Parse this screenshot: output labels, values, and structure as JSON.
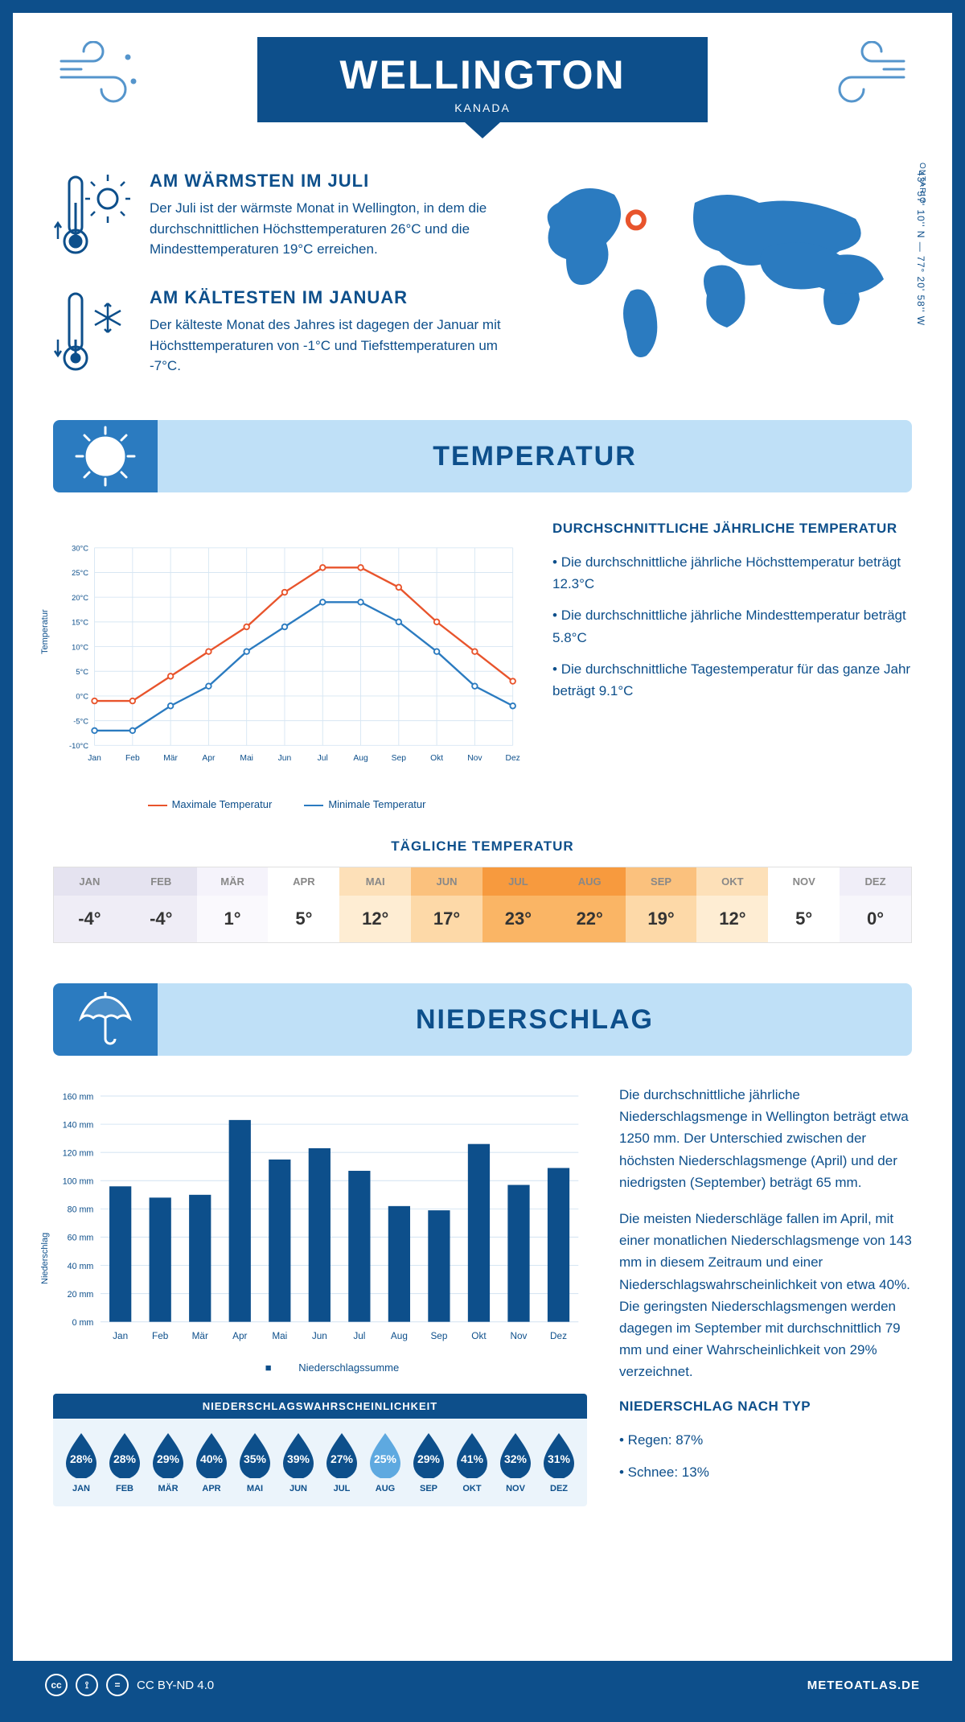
{
  "colors": {
    "primary": "#0d4f8b",
    "secondary": "#2b7bc0",
    "light_blue": "#bfe0f7",
    "pale_blue": "#ebf4fb",
    "orange_line": "#e8542c",
    "blue_line": "#2b7bc0",
    "bar_fill": "#0d4f8b",
    "grid": "#d7e6f3"
  },
  "header": {
    "city": "WELLINGTON",
    "country": "KANADA"
  },
  "location": {
    "region": "ONTARIO",
    "coords": "43° 57' 10'' N — 77° 20' 58'' W",
    "marker": {
      "lon": -77.35,
      "lat": 43.95
    }
  },
  "intro": {
    "warm": {
      "title": "AM WÄRMSTEN IM JULI",
      "text": "Der Juli ist der wärmste Monat in Wellington, in dem die durchschnittlichen Höchsttemperaturen 26°C und die Mindesttemperaturen 19°C erreichen."
    },
    "cold": {
      "title": "AM KÄLTESTEN IM JANUAR",
      "text": "Der kälteste Monat des Jahres ist dagegen der Januar mit Höchsttemperaturen von -1°C und Tiefsttemperaturen um -7°C."
    }
  },
  "temperature": {
    "section_title": "TEMPERATUR",
    "side": {
      "heading": "DURCHSCHNITTLICHE JÄHRLICHE TEMPERATUR",
      "lines": [
        "• Die durchschnittliche jährliche Höchsttemperatur beträgt 12.3°C",
        "• Die durchschnittliche jährliche Mindesttemperatur beträgt 5.8°C",
        "• Die durchschnittliche Tagestemperatur für das ganze Jahr beträgt 9.1°C"
      ]
    },
    "chart": {
      "type": "line",
      "y_axis_label": "Temperatur",
      "ylim": [
        -10,
        30
      ],
      "ytick_step": 5,
      "y_tick_suffix": "°C",
      "months": [
        "Jan",
        "Feb",
        "Mär",
        "Apr",
        "Mai",
        "Jun",
        "Jul",
        "Aug",
        "Sep",
        "Okt",
        "Nov",
        "Dez"
      ],
      "series": {
        "max": {
          "label": "Maximale Temperatur",
          "color": "#e8542c",
          "values": [
            -1,
            -1,
            4,
            9,
            14,
            21,
            26,
            26,
            22,
            15,
            9,
            3
          ]
        },
        "min": {
          "label": "Minimale Temperatur",
          "color": "#2b7bc0",
          "values": [
            -7,
            -7,
            -2,
            2,
            9,
            14,
            19,
            19,
            15,
            9,
            2,
            -2
          ]
        }
      }
    },
    "daily_title": "TÄGLICHE TEMPERATUR",
    "daily": {
      "months": [
        "JAN",
        "FEB",
        "MÄR",
        "APR",
        "MAI",
        "JUN",
        "JUL",
        "AUG",
        "SEP",
        "OKT",
        "NOV",
        "DEZ"
      ],
      "values": [
        "-4°",
        "-4°",
        "1°",
        "5°",
        "12°",
        "17°",
        "23°",
        "22°",
        "19°",
        "12°",
        "5°",
        "0°"
      ],
      "head_colors": [
        "#e5e3f0",
        "#e5e3f0",
        "#f5f3fb",
        "#ffffff",
        "#fde0b8",
        "#fbc17d",
        "#f79a3e",
        "#f79a3e",
        "#fbc17d",
        "#fde0b8",
        "#ffffff",
        "#f0eef8"
      ],
      "body_colors": [
        "#efedf6",
        "#efedf6",
        "#faf9fd",
        "#ffffff",
        "#feedd3",
        "#fdd9a8",
        "#fab565",
        "#fab565",
        "#fdd9a8",
        "#feedd3",
        "#ffffff",
        "#f7f6fb"
      ]
    }
  },
  "precipitation": {
    "section_title": "NIEDERSCHLAG",
    "chart": {
      "type": "bar",
      "y_axis_label": "Niederschlag",
      "ylim": [
        0,
        160
      ],
      "ytick_step": 20,
      "y_tick_suffix": " mm",
      "months": [
        "Jan",
        "Feb",
        "Mär",
        "Apr",
        "Mai",
        "Jun",
        "Jul",
        "Aug",
        "Sep",
        "Okt",
        "Nov",
        "Dez"
      ],
      "values": [
        96,
        88,
        90,
        143,
        115,
        123,
        107,
        82,
        79,
        126,
        97,
        109
      ],
      "legend": "Niederschlagssumme",
      "bar_color": "#0d4f8b"
    },
    "side_paragraphs": [
      "Die durchschnittliche jährliche Niederschlagsmenge in Wellington beträgt etwa 1250 mm. Der Unterschied zwischen der höchsten Niederschlagsmenge (April) und der niedrigsten (September) beträgt 65 mm.",
      "Die meisten Niederschläge fallen im April, mit einer monatlichen Niederschlagsmenge von 143 mm in diesem Zeitraum und einer Niederschlagswahrscheinlichkeit von etwa 40%. Die geringsten Niederschlagsmengen werden dagegen im September mit durchschnittlich 79 mm und einer Wahrscheinlichkeit von 29% verzeichnet."
    ],
    "by_type": {
      "heading": "NIEDERSCHLAG NACH TYP",
      "rain": "• Regen: 87%",
      "snow": "• Schnee: 13%"
    },
    "probability": {
      "title": "NIEDERSCHLAGSWAHRSCHEINLICHKEIT",
      "months": [
        "JAN",
        "FEB",
        "MÄR",
        "APR",
        "MAI",
        "JUN",
        "JUL",
        "AUG",
        "SEP",
        "OKT",
        "NOV",
        "DEZ"
      ],
      "values": [
        "28%",
        "28%",
        "29%",
        "40%",
        "35%",
        "39%",
        "27%",
        "25%",
        "29%",
        "41%",
        "32%",
        "31%"
      ],
      "min_index": 7,
      "drop_dark": "#0d4f8b",
      "drop_light": "#5ea9e0"
    }
  },
  "footer": {
    "license": "CC BY-ND 4.0",
    "brand": "METEOATLAS.DE"
  }
}
